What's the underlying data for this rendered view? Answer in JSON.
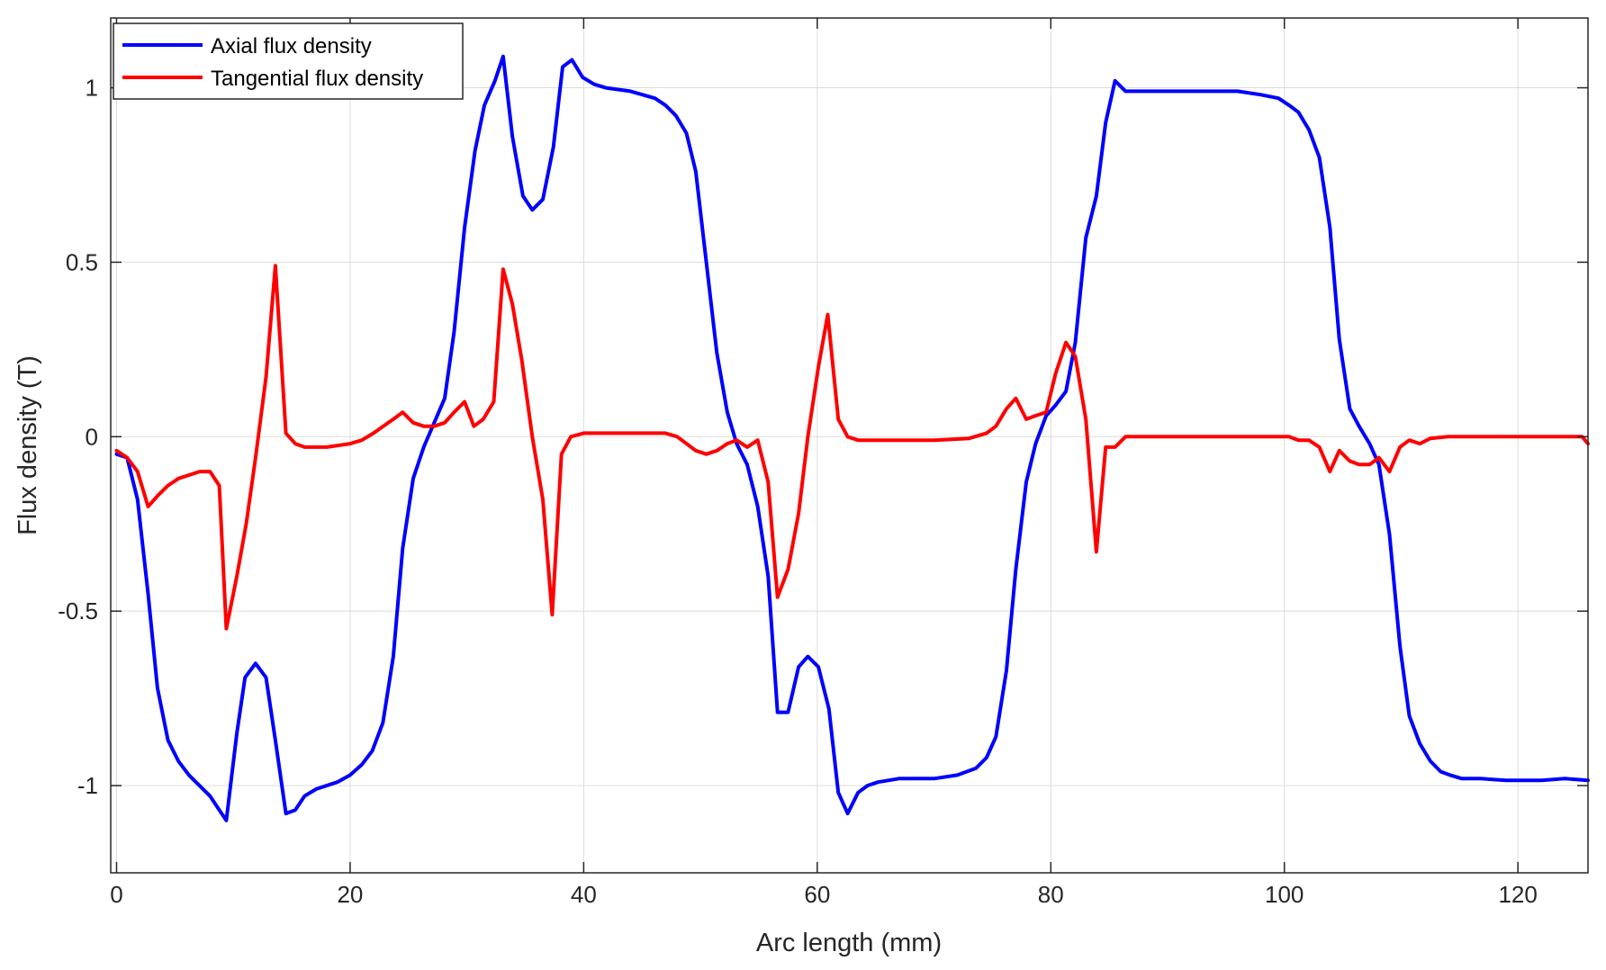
{
  "chart_data": {
    "type": "line",
    "xlabel": "Arc length (mm)",
    "ylabel": "Flux density (T)",
    "xlim": [
      -0.5,
      126
    ],
    "ylim": [
      -1.25,
      1.2
    ],
    "xticks": [
      0,
      20,
      40,
      60,
      80,
      100,
      120
    ],
    "yticks": [
      -1,
      -0.5,
      0,
      0.5,
      1
    ],
    "xtick_labels": [
      "0",
      "20",
      "40",
      "60",
      "80",
      "100",
      "120"
    ],
    "ytick_labels": [
      "-1",
      "-0.5",
      "0",
      "0.5",
      "1"
    ],
    "grid": true,
    "legend_position": "top-left",
    "series": [
      {
        "name": "Axial flux density",
        "color": "#0000ff",
        "points": [
          [
            0,
            -0.05
          ],
          [
            0.9,
            -0.06
          ],
          [
            1.8,
            -0.18
          ],
          [
            2.7,
            -0.45
          ],
          [
            3.5,
            -0.72
          ],
          [
            4.4,
            -0.87
          ],
          [
            5.3,
            -0.93
          ],
          [
            6.2,
            -0.97
          ],
          [
            7.1,
            -1.0
          ],
          [
            8.0,
            -1.03
          ],
          [
            8.8,
            -1.07
          ],
          [
            9.4,
            -1.1
          ],
          [
            10.3,
            -0.85
          ],
          [
            11.0,
            -0.69
          ],
          [
            11.9,
            -0.65
          ],
          [
            12.8,
            -0.69
          ],
          [
            13.6,
            -0.87
          ],
          [
            14.5,
            -1.08
          ],
          [
            15.3,
            -1.07
          ],
          [
            16.1,
            -1.03
          ],
          [
            17.1,
            -1.01
          ],
          [
            18.9,
            -0.99
          ],
          [
            20.0,
            -0.97
          ],
          [
            21.0,
            -0.94
          ],
          [
            21.9,
            -0.9
          ],
          [
            22.8,
            -0.82
          ],
          [
            23.7,
            -0.63
          ],
          [
            24.5,
            -0.32
          ],
          [
            25.4,
            -0.12
          ],
          [
            26.3,
            -0.03
          ],
          [
            27.2,
            0.04
          ],
          [
            28.1,
            0.11
          ],
          [
            28.9,
            0.3
          ],
          [
            29.8,
            0.6
          ],
          [
            30.7,
            0.82
          ],
          [
            31.5,
            0.95
          ],
          [
            32.4,
            1.02
          ],
          [
            33.1,
            1.09
          ],
          [
            33.9,
            0.86
          ],
          [
            34.8,
            0.69
          ],
          [
            35.6,
            0.65
          ],
          [
            36.5,
            0.68
          ],
          [
            37.4,
            0.83
          ],
          [
            38.2,
            1.06
          ],
          [
            39.0,
            1.08
          ],
          [
            39.9,
            1.03
          ],
          [
            40.9,
            1.01
          ],
          [
            41.9,
            1.0
          ],
          [
            44.0,
            0.99
          ],
          [
            46.1,
            0.97
          ],
          [
            47.0,
            0.95
          ],
          [
            47.9,
            0.92
          ],
          [
            48.8,
            0.87
          ],
          [
            49.6,
            0.76
          ],
          [
            50.5,
            0.5
          ],
          [
            51.4,
            0.24
          ],
          [
            52.3,
            0.07
          ],
          [
            53.1,
            -0.02
          ],
          [
            54.0,
            -0.08
          ],
          [
            54.9,
            -0.2
          ],
          [
            55.8,
            -0.4
          ],
          [
            56.6,
            -0.79
          ],
          [
            57.5,
            -0.79
          ],
          [
            58.4,
            -0.66
          ],
          [
            59.2,
            -0.63
          ],
          [
            60.1,
            -0.66
          ],
          [
            61.0,
            -0.78
          ],
          [
            61.8,
            -1.02
          ],
          [
            62.6,
            -1.08
          ],
          [
            63.5,
            -1.02
          ],
          [
            64.3,
            -1.0
          ],
          [
            65.2,
            -0.99
          ],
          [
            67.0,
            -0.98
          ],
          [
            70.0,
            -0.98
          ],
          [
            72.0,
            -0.97
          ],
          [
            73.6,
            -0.95
          ],
          [
            74.5,
            -0.92
          ],
          [
            75.3,
            -0.86
          ],
          [
            76.2,
            -0.67
          ],
          [
            77.0,
            -0.38
          ],
          [
            77.9,
            -0.13
          ],
          [
            78.7,
            -0.02
          ],
          [
            79.6,
            0.06
          ],
          [
            80.4,
            0.09
          ],
          [
            81.3,
            0.13
          ],
          [
            82.1,
            0.27
          ],
          [
            83.0,
            0.57
          ],
          [
            83.9,
            0.69
          ],
          [
            84.7,
            0.9
          ],
          [
            85.5,
            1.02
          ],
          [
            86.4,
            0.99
          ],
          [
            88.0,
            0.99
          ],
          [
            92.0,
            0.99
          ],
          [
            96.0,
            0.99
          ],
          [
            98.0,
            0.98
          ],
          [
            99.5,
            0.97
          ],
          [
            100.4,
            0.95
          ],
          [
            101.2,
            0.93
          ],
          [
            102.1,
            0.88
          ],
          [
            103.0,
            0.8
          ],
          [
            103.9,
            0.6
          ],
          [
            104.7,
            0.28
          ],
          [
            105.6,
            0.08
          ],
          [
            106.4,
            0.03
          ],
          [
            107.3,
            -0.02
          ],
          [
            108.1,
            -0.08
          ],
          [
            109.0,
            -0.28
          ],
          [
            109.9,
            -0.6
          ],
          [
            110.7,
            -0.8
          ],
          [
            111.6,
            -0.88
          ],
          [
            112.5,
            -0.93
          ],
          [
            113.4,
            -0.96
          ],
          [
            114.2,
            -0.97
          ],
          [
            115.2,
            -0.98
          ],
          [
            116.8,
            -0.98
          ],
          [
            119.0,
            -0.985
          ],
          [
            122.0,
            -0.985
          ],
          [
            124.0,
            -0.98
          ],
          [
            126.0,
            -0.985
          ]
        ]
      },
      {
        "name": "Tangential flux density",
        "color": "#ff0000",
        "points": [
          [
            0,
            -0.04
          ],
          [
            0.9,
            -0.06
          ],
          [
            1.8,
            -0.1
          ],
          [
            2.7,
            -0.2
          ],
          [
            3.5,
            -0.17
          ],
          [
            4.4,
            -0.14
          ],
          [
            5.3,
            -0.12
          ],
          [
            6.2,
            -0.11
          ],
          [
            7.1,
            -0.1
          ],
          [
            8.0,
            -0.1
          ],
          [
            8.8,
            -0.14
          ],
          [
            9.4,
            -0.55
          ],
          [
            10.3,
            -0.4
          ],
          [
            11.1,
            -0.25
          ],
          [
            11.9,
            -0.06
          ],
          [
            12.8,
            0.17
          ],
          [
            13.6,
            0.49
          ],
          [
            14.5,
            0.01
          ],
          [
            15.3,
            -0.02
          ],
          [
            16.1,
            -0.03
          ],
          [
            18.0,
            -0.03
          ],
          [
            20.0,
            -0.02
          ],
          [
            21.0,
            -0.01
          ],
          [
            22.0,
            0.01
          ],
          [
            23.7,
            0.05
          ],
          [
            24.5,
            0.07
          ],
          [
            25.4,
            0.04
          ],
          [
            26.3,
            0.03
          ],
          [
            27.2,
            0.03
          ],
          [
            28.1,
            0.04
          ],
          [
            28.9,
            0.07
          ],
          [
            29.8,
            0.1
          ],
          [
            30.6,
            0.03
          ],
          [
            31.4,
            0.05
          ],
          [
            32.3,
            0.1
          ],
          [
            33.1,
            0.48
          ],
          [
            33.9,
            0.38
          ],
          [
            34.7,
            0.22
          ],
          [
            35.6,
            0.0
          ],
          [
            36.5,
            -0.18
          ],
          [
            37.3,
            -0.51
          ],
          [
            38.1,
            -0.05
          ],
          [
            38.9,
            0.0
          ],
          [
            40.0,
            0.01
          ],
          [
            42.0,
            0.01
          ],
          [
            44.0,
            0.01
          ],
          [
            46.1,
            0.01
          ],
          [
            47.0,
            0.01
          ],
          [
            48.0,
            0.0
          ],
          [
            49.6,
            -0.04
          ],
          [
            50.5,
            -0.05
          ],
          [
            51.4,
            -0.04
          ],
          [
            52.3,
            -0.02
          ],
          [
            53.1,
            -0.01
          ],
          [
            54.0,
            -0.03
          ],
          [
            54.9,
            -0.01
          ],
          [
            55.8,
            -0.13
          ],
          [
            56.6,
            -0.46
          ],
          [
            57.5,
            -0.38
          ],
          [
            58.4,
            -0.22
          ],
          [
            59.2,
            0.0
          ],
          [
            60.1,
            0.2
          ],
          [
            60.9,
            0.35
          ],
          [
            61.8,
            0.05
          ],
          [
            62.6,
            0.0
          ],
          [
            63.5,
            -0.01
          ],
          [
            66.0,
            -0.01
          ],
          [
            70.0,
            -0.01
          ],
          [
            73.0,
            -0.005
          ],
          [
            74.5,
            0.01
          ],
          [
            75.3,
            0.03
          ],
          [
            76.2,
            0.08
          ],
          [
            77.0,
            0.11
          ],
          [
            77.9,
            0.05
          ],
          [
            78.7,
            0.06
          ],
          [
            79.6,
            0.07
          ],
          [
            80.4,
            0.18
          ],
          [
            81.3,
            0.27
          ],
          [
            82.1,
            0.23
          ],
          [
            83.0,
            0.05
          ],
          [
            83.9,
            -0.33
          ],
          [
            84.7,
            -0.03
          ],
          [
            85.5,
            -0.03
          ],
          [
            86.4,
            0.0
          ],
          [
            88.0,
            0.0
          ],
          [
            92.0,
            0.0
          ],
          [
            96.0,
            0.0
          ],
          [
            99.5,
            0.0
          ],
          [
            100.4,
            0.0
          ],
          [
            101.2,
            -0.01
          ],
          [
            102.1,
            -0.01
          ],
          [
            103.0,
            -0.03
          ],
          [
            103.9,
            -0.1
          ],
          [
            104.7,
            -0.04
          ],
          [
            105.6,
            -0.07
          ],
          [
            106.4,
            -0.08
          ],
          [
            107.3,
            -0.08
          ],
          [
            108.1,
            -0.06
          ],
          [
            109.0,
            -0.1
          ],
          [
            109.9,
            -0.03
          ],
          [
            110.7,
            -0.01
          ],
          [
            111.6,
            -0.02
          ],
          [
            112.5,
            -0.005
          ],
          [
            114.0,
            0.0
          ],
          [
            116.0,
            0.0
          ],
          [
            120.0,
            0.0
          ],
          [
            124.0,
            0.0
          ],
          [
            125.5,
            0.0
          ],
          [
            126.0,
            -0.02
          ]
        ]
      }
    ]
  }
}
